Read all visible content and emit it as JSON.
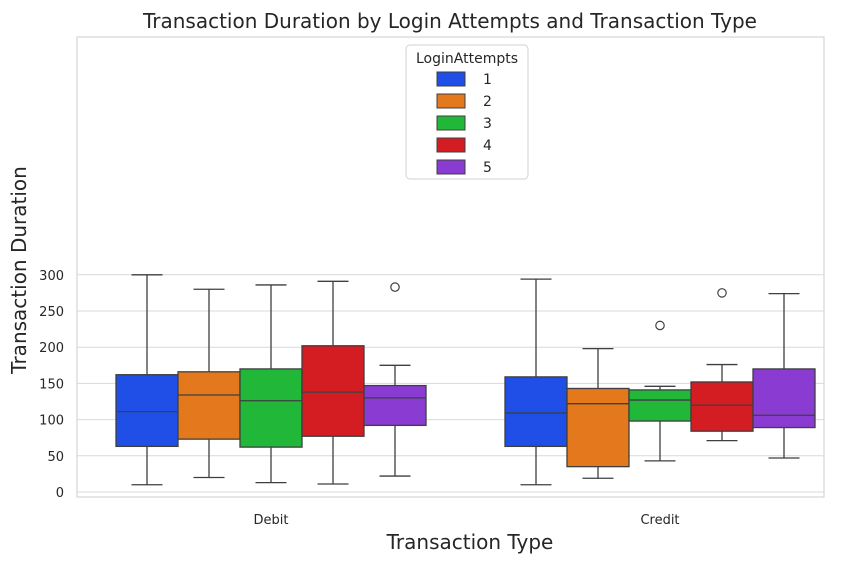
{
  "chart_data": {
    "type": "box",
    "title": "Transaction Duration by Login Attempts and Transaction Type",
    "xlabel": "Transaction Type",
    "ylabel": "Transaction Duration",
    "categories": [
      "Debit",
      "Credit"
    ],
    "ylim": [
      -5,
      315
    ],
    "yticks": [
      0,
      50,
      100,
      150,
      200,
      250,
      300
    ],
    "grid": true,
    "legend": {
      "title": "LoginAttempts",
      "placement": "top-center"
    },
    "series": [
      {
        "name": "1",
        "color": "#1f4fe6",
        "boxes": [
          {
            "whislo": 10,
            "q1": 63,
            "med": 111,
            "q3": 162,
            "whishi": 300,
            "fliers": []
          },
          {
            "whislo": 10,
            "q1": 63,
            "med": 109,
            "q3": 159,
            "whishi": 294,
            "fliers": []
          }
        ]
      },
      {
        "name": "2",
        "color": "#e3791c",
        "boxes": [
          {
            "whislo": 20,
            "q1": 73,
            "med": 134,
            "q3": 166,
            "whishi": 280,
            "fliers": []
          },
          {
            "whislo": 19,
            "q1": 35,
            "med": 122,
            "q3": 143,
            "whishi": 198,
            "fliers": []
          }
        ]
      },
      {
        "name": "3",
        "color": "#21b83a",
        "boxes": [
          {
            "whislo": 13,
            "q1": 62,
            "med": 126,
            "q3": 170,
            "whishi": 286,
            "fliers": []
          },
          {
            "whislo": 43,
            "q1": 98,
            "med": 127,
            "q3": 141,
            "whishi": 146,
            "fliers": [
              230
            ]
          }
        ]
      },
      {
        "name": "4",
        "color": "#d41c23",
        "boxes": [
          {
            "whislo": 11,
            "q1": 77,
            "med": 138,
            "q3": 202,
            "whishi": 291,
            "fliers": []
          },
          {
            "whislo": 71,
            "q1": 84,
            "med": 120,
            "q3": 152,
            "whishi": 176,
            "fliers": [
              275
            ]
          }
        ]
      },
      {
        "name": "5",
        "color": "#8a3bd1",
        "boxes": [
          {
            "whislo": 22,
            "q1": 92,
            "med": 130,
            "q3": 147,
            "whishi": 175,
            "fliers": [
              283
            ]
          },
          {
            "whislo": 47,
            "q1": 89,
            "med": 106,
            "q3": 170,
            "whishi": 274,
            "fliers": []
          }
        ]
      }
    ]
  }
}
